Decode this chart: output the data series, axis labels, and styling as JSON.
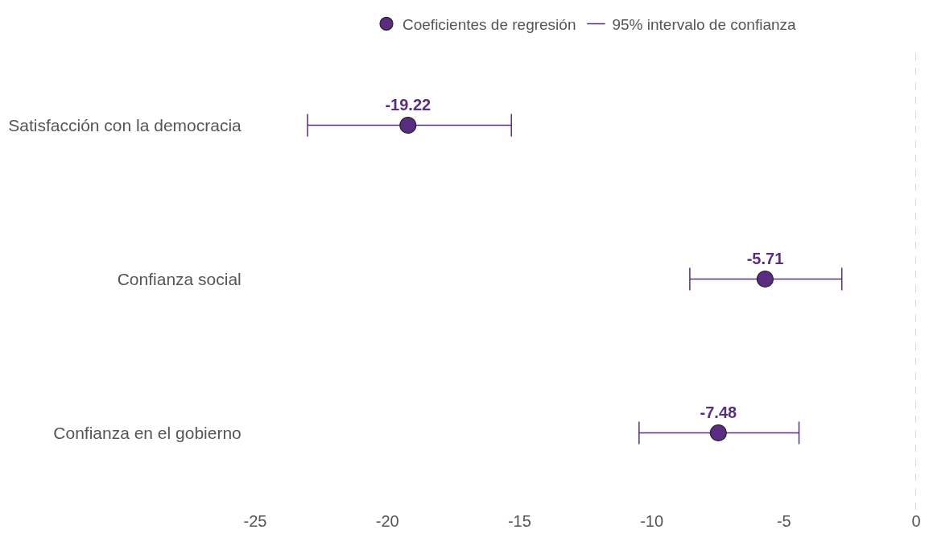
{
  "chart_data": {
    "type": "scatter",
    "orientation": "horizontal",
    "categories": [
      "Satisfacción con la democracia",
      "Confianza social",
      "Confianza en el gobierno"
    ],
    "series": [
      {
        "name": "Coeficientes de regresión",
        "color": "#5a2d82",
        "values": [
          -19.22,
          -5.71,
          -7.48
        ],
        "errors": [
          [
            -23.02,
            -15.31
          ],
          [
            -8.56,
            -2.81
          ],
          [
            -10.48,
            -4.43
          ]
        ]
      }
    ],
    "annotations": [
      "95% intervalo de confianza"
    ],
    "data_labels": true,
    "xlim": [
      -25,
      0
    ],
    "xticks": [
      -25,
      -20,
      -15,
      -10,
      -5,
      0
    ],
    "ref_lines": [
      {
        "axis": "x",
        "value": 0,
        "color": "#cccccc",
        "line_style": "dashed"
      }
    ],
    "marker": "circle",
    "legend": "top"
  }
}
